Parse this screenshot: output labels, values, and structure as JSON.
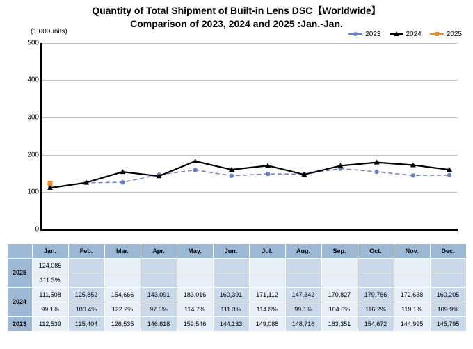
{
  "title_line1": "Quantity of Total Shipment of Built-in Lens DSC【Worldwide】",
  "title_line2": "Comparison of 2023, 2024 and 2025 :Jan.-Jan.",
  "y_axis_label": "(1,000units)",
  "chart": {
    "type": "line",
    "months": [
      "Jan.",
      "Feb.",
      "Mar.",
      "Apr.",
      "May.",
      "Jun.",
      "Jul.",
      "Aug.",
      "Sep.",
      "Oct.",
      "Nov.",
      "Dec."
    ],
    "ylim": [
      0,
      500
    ],
    "ytick_step": 100,
    "grid_color": "#bfbfbf",
    "background_color": "#ffffff",
    "series": [
      {
        "name": "2023",
        "color": "#6d7dc9",
        "line_width": 1.5,
        "dash": "6,4",
        "marker": "circle",
        "values": [
          112539,
          125404,
          126535,
          146818,
          159546,
          144133,
          149088,
          148716,
          163351,
          154672,
          144995,
          145795
        ]
      },
      {
        "name": "2024",
        "color": "#000000",
        "line_width": 2.2,
        "dash": "",
        "marker": "triangle",
        "values": [
          111508,
          125852,
          154666,
          143091,
          183016,
          160391,
          171112,
          147342,
          170827,
          179766,
          172638,
          160205
        ]
      },
      {
        "name": "2025",
        "color": "#e88b2e",
        "line_width": 2,
        "dash": "",
        "marker": "square",
        "values": [
          124085,
          null,
          null,
          null,
          null,
          null,
          null,
          null,
          null,
          null,
          null,
          null
        ]
      }
    ]
  },
  "table": {
    "header_bg": "#9cb8d4",
    "cell_bg_light": "#e6eef7",
    "cell_bg_dark": "#c9d9ea",
    "rows": [
      {
        "label": "2025",
        "sub": [
          {
            "cells": [
              "124,085",
              "",
              "",
              "",
              "",
              "",
              "",
              "",
              "",
              "",
              "",
              ""
            ]
          },
          {
            "cells": [
              "111.3%",
              "",
              "",
              "",
              "",
              "",
              "",
              "",
              "",
              "",
              "",
              ""
            ]
          }
        ]
      },
      {
        "label": "2024",
        "sub": [
          {
            "cells": [
              "111,508",
              "125,852",
              "154,666",
              "143,091",
              "183,016",
              "160,391",
              "171,112",
              "147,342",
              "170,827",
              "179,766",
              "172,638",
              "160,205"
            ]
          },
          {
            "cells": [
              "99.1%",
              "100.4%",
              "122.2%",
              "97.5%",
              "114.7%",
              "111.3%",
              "114.8%",
              "99.1%",
              "104.6%",
              "116.2%",
              "119.1%",
              "109.9%"
            ]
          }
        ]
      },
      {
        "label": "2023",
        "sub": [
          {
            "cells": [
              "112,539",
              "125,404",
              "126,535",
              "146,818",
              "159,546",
              "144,133",
              "149,088",
              "148,716",
              "163,351",
              "154,672",
              "144,995",
              "145,795"
            ]
          }
        ]
      }
    ]
  }
}
